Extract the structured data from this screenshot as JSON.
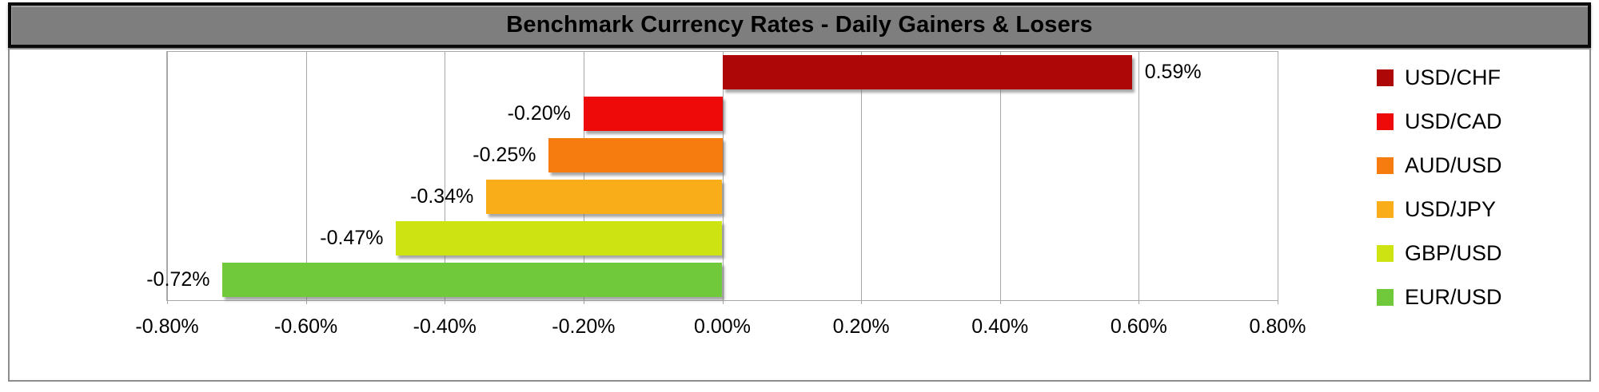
{
  "chart_data": {
    "type": "bar",
    "orientation": "horizontal",
    "title": "Benchmark Currency Rates - Daily Gainers & Losers",
    "categories": [
      "USD/CHF",
      "USD/CAD",
      "AUD/USD",
      "USD/JPY",
      "GBP/USD",
      "EUR/USD"
    ],
    "values": [
      0.59,
      -0.2,
      -0.25,
      -0.34,
      -0.47,
      -0.72
    ],
    "data_labels": [
      "0.59%",
      "-0.20%",
      "-0.25%",
      "-0.34%",
      "-0.47%",
      "-0.72%"
    ],
    "bar_colors": [
      "#AE0707",
      "#EF0A0A",
      "#F67C0F",
      "#F9AD18",
      "#CEE412",
      "#6FC93A"
    ],
    "xlabel": "",
    "ylabel": "",
    "xlim": [
      -0.8,
      0.8
    ],
    "x_ticks": [
      -0.8,
      -0.6,
      -0.4,
      -0.2,
      0,
      0.2,
      0.4,
      0.6,
      0.8
    ],
    "x_tick_labels": [
      "-0.80%",
      "-0.60%",
      "-0.40%",
      "-0.20%",
      "0.00%",
      "0.20%",
      "0.40%",
      "0.60%",
      "0.80%"
    ],
    "grid": true,
    "legend_position": "right",
    "legend": [
      {
        "label": "USD/CHF",
        "color": "#AE0707"
      },
      {
        "label": "USD/CAD",
        "color": "#EF0A0A"
      },
      {
        "label": "AUD/USD",
        "color": "#F67C0F"
      },
      {
        "label": "USD/JPY",
        "color": "#F9AD18"
      },
      {
        "label": "GBP/USD",
        "color": "#CEE412"
      },
      {
        "label": "EUR/USD",
        "color": "#6FC93A"
      }
    ]
  },
  "colors": {
    "title_bar_bg": "#7E7E7E",
    "title_text": "#000000",
    "frame_border": "#8D8D8D",
    "plot_border": "#A8A8A8",
    "gridline": "#A8A8A8",
    "axis_text": "#000000"
  }
}
